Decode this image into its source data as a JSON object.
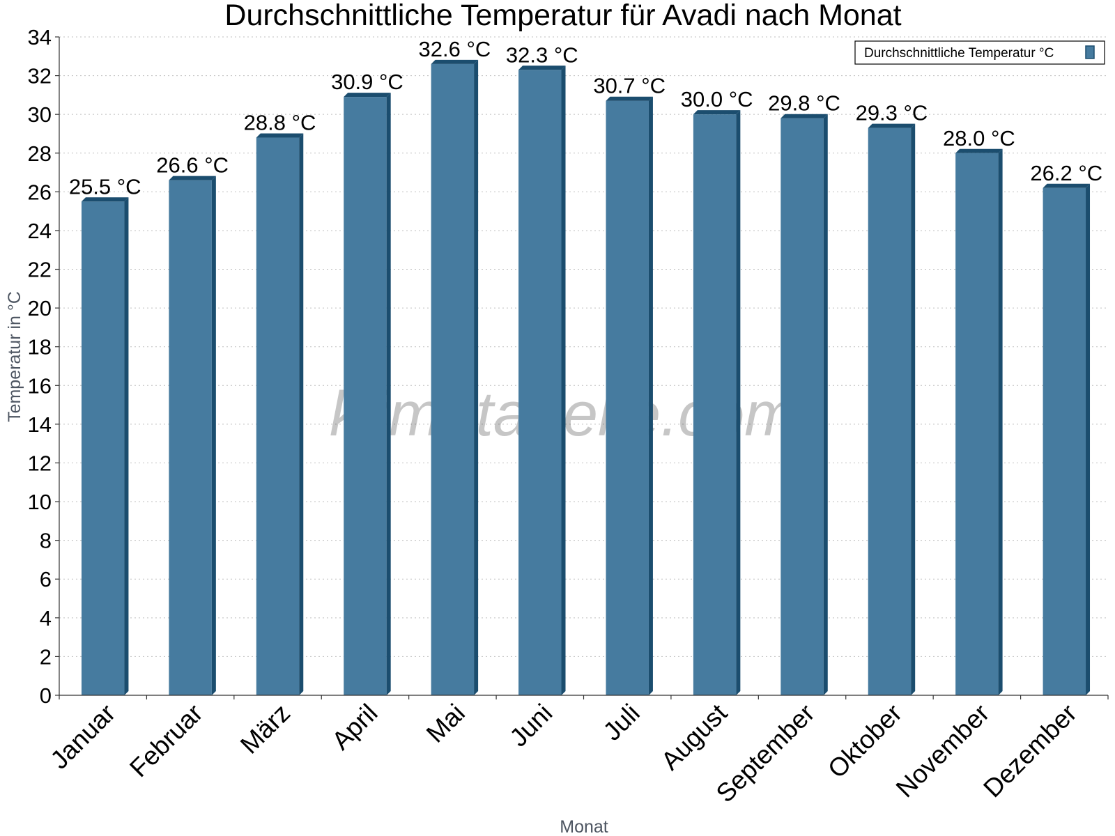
{
  "chart_data": {
    "type": "bar",
    "title": "Durchschnittliche Temperatur für Avadi nach Monat",
    "xlabel": "Monat",
    "ylabel": "Temperatur in °C",
    "categories": [
      "Januar",
      "Februar",
      "März",
      "April",
      "Mai",
      "Juni",
      "Juli",
      "August",
      "September",
      "Oktober",
      "November",
      "Dezember"
    ],
    "series": [
      {
        "name": "Durchschnittliche Temperatur °C",
        "values": [
          25.5,
          26.6,
          28.8,
          30.9,
          32.6,
          32.3,
          30.7,
          30.0,
          29.8,
          29.3,
          28.0,
          26.2
        ],
        "labels": [
          "25.5 °C",
          "26.6 °C",
          "28.8 °C",
          "30.9 °C",
          "32.6 °C",
          "32.3 °C",
          "30.7 °C",
          "30.0 °C",
          "29.8 °C",
          "29.3 °C",
          "28.0 °C",
          "26.2 °C"
        ]
      }
    ],
    "ylim": [
      0,
      34
    ],
    "yticks": [
      0,
      2,
      4,
      6,
      8,
      10,
      12,
      14,
      16,
      18,
      20,
      22,
      24,
      26,
      28,
      30,
      32,
      34
    ],
    "grid": true,
    "legend_position": "top-right",
    "bar_color": "#467b9f",
    "bar_edge_color": "#1b4d6e",
    "watermark": "klimatabelle.com"
  }
}
